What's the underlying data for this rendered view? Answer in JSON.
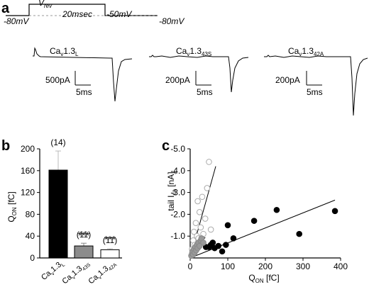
{
  "panel_a": {
    "label": "a",
    "protocol": {
      "v_hold": "-80mV",
      "v_rev_main": "V",
      "v_rev_sub": "rev",
      "duration": "20msec",
      "v_step": "-50mV",
      "v_end": "-80mV"
    },
    "traces": [
      {
        "name_main": "Ca",
        "name_sub1": "v",
        "name_mid": "1.3",
        "name_sub2": "L",
        "scale_y": "500pA",
        "scale_x": "5ms"
      },
      {
        "name_main": "Ca",
        "name_sub1": "v",
        "name_mid": "1.3",
        "name_sub2": "43S",
        "scale_y": "200pA",
        "scale_x": "5ms"
      },
      {
        "name_main": "Ca",
        "name_sub1": "v",
        "name_mid": "1.3",
        "name_sub2": "42A",
        "scale_y": "200pA",
        "scale_x": "5ms"
      }
    ]
  },
  "chart_data": [
    {
      "type": "bar",
      "panel": "b",
      "ylabel_main": "Q",
      "ylabel_sub": "ON",
      "ylabel_unit": " [fC]",
      "ylim": [
        0,
        200
      ],
      "yticks": [
        0,
        40,
        80,
        120,
        160,
        200
      ],
      "categories": [
        {
          "main": "Ca",
          "sub1": "v",
          "mid": "1.3",
          "sub2": "L"
        },
        {
          "main": "Ca",
          "sub1": "v",
          "mid": "1.3",
          "sub2": "43S"
        },
        {
          "main": "Ca",
          "sub1": "v",
          "mid": "1.3",
          "sub2": "42A"
        }
      ],
      "values": [
        161,
        22,
        15
      ],
      "errors": [
        35,
        5,
        2
      ],
      "counts": [
        "(14)",
        "(11)",
        "(11)"
      ],
      "significance": [
        "",
        "***",
        "***"
      ],
      "colors": [
        "#000000",
        "#8c8c8c",
        "#ffffff"
      ]
    },
    {
      "type": "scatter",
      "panel": "c",
      "xlabel_main": "Q",
      "xlabel_sub": "ON",
      "xlabel_unit": " [fC]",
      "ylabel_prefix": "tail  I",
      "ylabel_sub": "ca",
      "ylabel_unit": " [nA]",
      "xlim": [
        0,
        400
      ],
      "ylim": [
        0,
        -5.0
      ],
      "xticks": [
        0,
        100,
        200,
        300,
        400
      ],
      "yticks": [
        -1.0,
        -2.0,
        -3.0,
        -4.0,
        -5.0
      ],
      "ytick_labels": [
        "-1.0",
        "-2.0",
        "-3.0",
        "-4.0",
        "-5.0"
      ],
      "series": [
        {
          "style": "open",
          "points": [
            [
              5,
              -0.4
            ],
            [
              8,
              -0.8
            ],
            [
              10,
              -1.2
            ],
            [
              12,
              -0.6
            ],
            [
              15,
              -1.6
            ],
            [
              18,
              -1.0
            ],
            [
              20,
              -2.6
            ],
            [
              22,
              -0.9
            ],
            [
              25,
              -2.1
            ],
            [
              28,
              -1.4
            ],
            [
              30,
              -0.7
            ],
            [
              32,
              -2.8
            ],
            [
              35,
              -1.1
            ],
            [
              40,
              -1.8
            ],
            [
              45,
              -3.2
            ],
            [
              50,
              -4.4
            ],
            [
              55,
              -1.3
            ]
          ],
          "fit": [
            [
              0,
              0
            ],
            [
              68,
              -4.2
            ]
          ]
        },
        {
          "style": "filled",
          "points": [
            [
              42,
              -0.5
            ],
            [
              50,
              -0.5
            ],
            [
              55,
              -0.6
            ],
            [
              60,
              -0.7
            ],
            [
              65,
              -0.45
            ],
            [
              75,
              -0.55
            ],
            [
              85,
              -0.3
            ],
            [
              95,
              -0.6
            ],
            [
              100,
              -1.5
            ],
            [
              115,
              -0.9
            ],
            [
              170,
              -1.7
            ],
            [
              230,
              -2.2
            ],
            [
              290,
              -1.1
            ],
            [
              385,
              -2.15
            ]
          ],
          "fit": [
            [
              0,
              0
            ],
            [
              385,
              -2.65
            ]
          ]
        },
        {
          "style": "gray",
          "points": [
            [
              3,
              -0.1
            ],
            [
              5,
              -0.2
            ],
            [
              6,
              -0.3
            ],
            [
              8,
              -0.15
            ],
            [
              10,
              -0.4
            ],
            [
              12,
              -0.25
            ],
            [
              14,
              -0.5
            ],
            [
              16,
              -0.35
            ],
            [
              18,
              -0.6
            ],
            [
              20,
              -0.45
            ],
            [
              22,
              -0.7
            ],
            [
              25,
              -0.55
            ],
            [
              28,
              -0.8
            ],
            [
              30,
              -0.9
            ],
            [
              35,
              -0.7
            ]
          ],
          "fit": [
            [
              0,
              0
            ],
            [
              40,
              -0.95
            ]
          ]
        }
      ]
    }
  ]
}
